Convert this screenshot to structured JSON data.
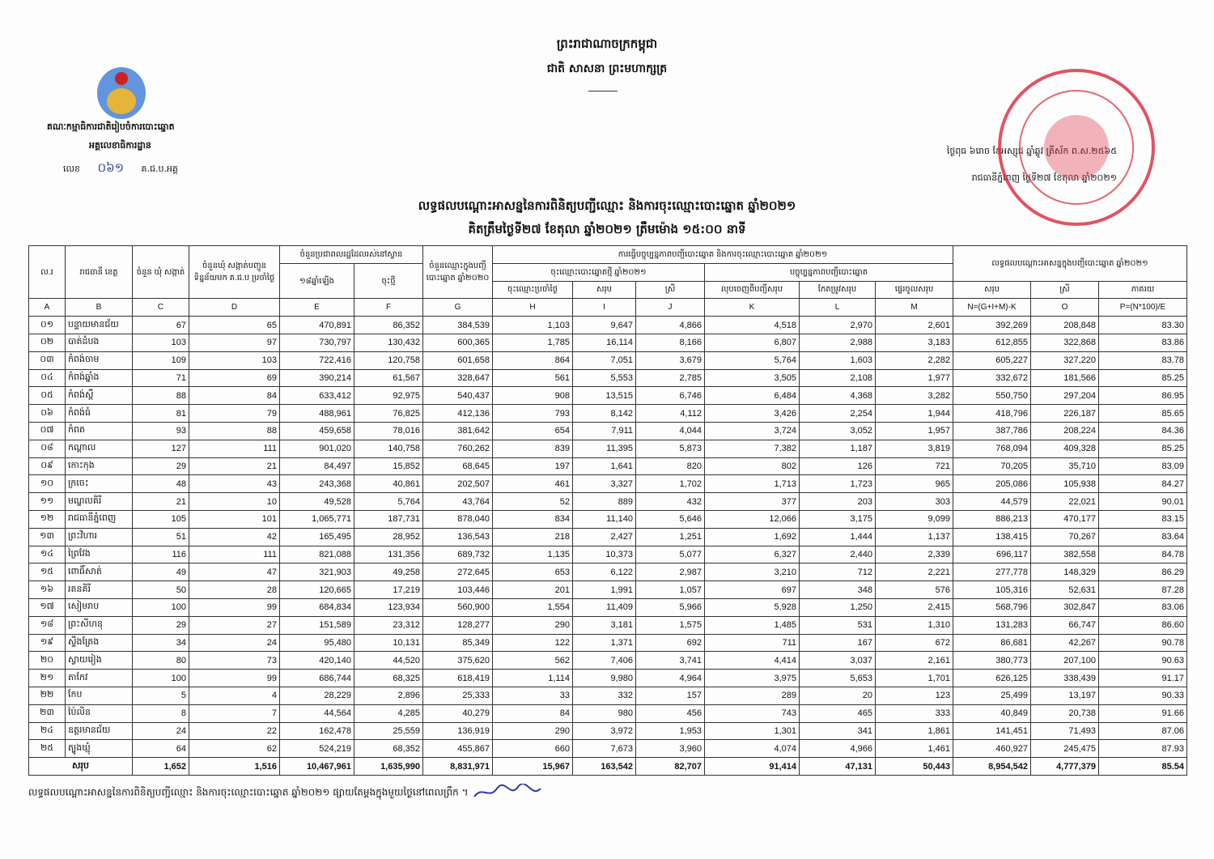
{
  "header": {
    "kingdom": "ព្រះរាជាណាចក្រកម្ពុជា",
    "motto": "ជាតិ សាសនា ព្រះមហាក្សត្រ"
  },
  "issuer": {
    "committee": "គណៈកម្មាធិការជាតិរៀបចំការបោះឆ្នោត",
    "office": "អគ្គលេខាធិការដ្ឋាន",
    "ref_label": "លេខ",
    "ref_number": "០៦១",
    "ref_suffix": "គ.ជ.ប.អគ្គ"
  },
  "date": {
    "lunar": "ថ្ងៃពុធ ៦រោច ខែអស្សុជ ឆ្នាំឆ្លូវ ត្រីស័ក ព.ស.២៥៦៥",
    "solar": "រាជធានីភ្នំពេញ ថ្ងៃទី២៧ ខែតុលា ឆ្នាំ២០២១"
  },
  "title": {
    "line1": "លទ្ធផលបណ្ដោះអាសន្ននៃការពិនិត្យបញ្ជីឈ្មោះ និងការចុះឈ្មោះបោះឆ្នោត ឆ្នាំ២០២១",
    "line2": "គិតត្រឹមថ្ងៃទី២៧ ខែតុលា ឆ្នាំ២០២១ ត្រឹមម៉ោង ១៥:០០ នាទី"
  },
  "colors": {
    "stamp": "#d9283a",
    "border": "#333333"
  },
  "table": {
    "headers": {
      "no": "ល.រ",
      "province": "រាជធានី ខេត្ត",
      "communes": "ចំនួន ឃុំ សង្កាត់",
      "reported": "ចំនួនឃុំ សង្កាត់បញ្ជូនទិន្នន័យមក គ.ជ.ប ប្រចាំថ្ងៃ",
      "population": "ចំនួនប្រជាពលរដ្ឋដែលរស់នៅស្ទាន",
      "pop_18": "១៨ឆ្នាំឡើង",
      "pop_new": "ចុះថ្មី",
      "voters2020": "ចំនួនឈ្មោះក្នុងបញ្ជីបោះឆ្នោត ឆ្នាំ២០២០",
      "update_group": "ការធ្វើបច្ចុប្បន្នភាពបញ្ជីបោះឆ្នោត និងការចុះឈ្មោះបោះឆ្នោត ឆ្នាំ២០២១",
      "new_reg": "ចុះឈ្មោះបោះឆ្នោតថ្មី ឆ្នាំ២០២១",
      "daily": "ចុះឈ្មោះប្រចាំថ្ងៃ",
      "total": "សរុប",
      "female": "ស្រី",
      "updating": "បច្ចុប្បន្នភាពបញ្ជីបោះឆ្នោត",
      "deleted": "លុបចេញពីបញ្ជីសរុប",
      "corrected": "កែតម្រូវសរុប",
      "moved": "ផ្ទេរចូលសរុប",
      "result_group": "លទ្ធផលបណ្ដោះអាសន្នក្នុងបញ្ជីបោះឆ្នោត ឆ្នាំ២០២១",
      "percent": "ភាគរយ"
    },
    "letters": [
      "A",
      "B",
      "C",
      "D",
      "E",
      "F",
      "G",
      "H",
      "I",
      "J",
      "K",
      "L",
      "M",
      "N=(G+I+M)-K",
      "O",
      "P=(N*100)/E"
    ],
    "rows": [
      [
        "០១",
        "បន្ទាយមានជ័យ",
        "67",
        "65",
        "470,891",
        "86,352",
        "384,539",
        "1,103",
        "9,647",
        "4,866",
        "4,518",
        "2,970",
        "2,601",
        "392,269",
        "208,848",
        "83.30"
      ],
      [
        "០២",
        "បាត់ដំបង",
        "103",
        "97",
        "730,797",
        "130,432",
        "600,365",
        "1,785",
        "16,114",
        "8,166",
        "6,807",
        "2,988",
        "3,183",
        "612,855",
        "322,868",
        "83.86"
      ],
      [
        "០៣",
        "កំពង់ចាម",
        "109",
        "103",
        "722,416",
        "120,758",
        "601,658",
        "864",
        "7,051",
        "3,679",
        "5,764",
        "1,603",
        "2,282",
        "605,227",
        "327,220",
        "83.78"
      ],
      [
        "០៤",
        "កំពង់ឆ្នាំង",
        "71",
        "69",
        "390,214",
        "61,567",
        "328,647",
        "561",
        "5,553",
        "2,785",
        "3,505",
        "2,108",
        "1,977",
        "332,672",
        "181,566",
        "85.25"
      ],
      [
        "០៥",
        "កំពង់ស្ពឺ",
        "88",
        "84",
        "633,412",
        "92,975",
        "540,437",
        "908",
        "13,515",
        "6,746",
        "6,484",
        "4,368",
        "3,282",
        "550,750",
        "297,204",
        "86.95"
      ],
      [
        "០៦",
        "កំពង់ធំ",
        "81",
        "79",
        "488,961",
        "76,825",
        "412,136",
        "793",
        "8,142",
        "4,112",
        "3,426",
        "2,254",
        "1,944",
        "418,796",
        "226,187",
        "85.65"
      ],
      [
        "០៧",
        "កំពត",
        "93",
        "88",
        "459,658",
        "78,016",
        "381,642",
        "654",
        "7,911",
        "4,044",
        "3,724",
        "3,052",
        "1,957",
        "387,786",
        "208,224",
        "84.36"
      ],
      [
        "០៨",
        "កណ្ដាល",
        "127",
        "111",
        "901,020",
        "140,758",
        "760,262",
        "839",
        "11,395",
        "5,873",
        "7,382",
        "1,187",
        "3,819",
        "768,094",
        "409,328",
        "85.25"
      ],
      [
        "០៩",
        "កោះកុង",
        "29",
        "21",
        "84,497",
        "15,852",
        "68,645",
        "197",
        "1,641",
        "820",
        "802",
        "126",
        "721",
        "70,205",
        "35,710",
        "83.09"
      ],
      [
        "១០",
        "ក្រចេះ",
        "48",
        "43",
        "243,368",
        "40,861",
        "202,507",
        "461",
        "3,327",
        "1,702",
        "1,713",
        "1,723",
        "965",
        "205,086",
        "105,938",
        "84.27"
      ],
      [
        "១១",
        "មណ្ឌលគិរី",
        "21",
        "10",
        "49,528",
        "5,764",
        "43,764",
        "52",
        "889",
        "432",
        "377",
        "203",
        "303",
        "44,579",
        "22,021",
        "90.01"
      ],
      [
        "១២",
        "រាជធានីភ្នំពេញ",
        "105",
        "101",
        "1,065,771",
        "187,731",
        "878,040",
        "834",
        "11,140",
        "5,646",
        "12,066",
        "3,175",
        "9,099",
        "886,213",
        "470,177",
        "83.15"
      ],
      [
        "១៣",
        "ព្រះវិហារ",
        "51",
        "42",
        "165,495",
        "28,952",
        "136,543",
        "218",
        "2,427",
        "1,251",
        "1,692",
        "1,444",
        "1,137",
        "138,415",
        "70,267",
        "83.64"
      ],
      [
        "១៤",
        "ព្រៃវែង",
        "116",
        "111",
        "821,088",
        "131,356",
        "689,732",
        "1,135",
        "10,373",
        "5,077",
        "6,327",
        "2,440",
        "2,339",
        "696,117",
        "382,558",
        "84.78"
      ],
      [
        "១៥",
        "ពោធិ៍សាត់",
        "49",
        "47",
        "321,903",
        "49,258",
        "272,645",
        "653",
        "6,122",
        "2,987",
        "3,210",
        "712",
        "2,221",
        "277,778",
        "148,329",
        "86.29"
      ],
      [
        "១៦",
        "រតនគិរី",
        "50",
        "28",
        "120,665",
        "17,219",
        "103,446",
        "201",
        "1,991",
        "1,057",
        "697",
        "348",
        "576",
        "105,316",
        "52,631",
        "87.28"
      ],
      [
        "១៧",
        "សៀមរាប",
        "100",
        "99",
        "684,834",
        "123,934",
        "560,900",
        "1,554",
        "11,409",
        "5,966",
        "5,928",
        "1,250",
        "2,415",
        "568,796",
        "302,847",
        "83.06"
      ],
      [
        "១៨",
        "ព្រះសីហនុ",
        "29",
        "27",
        "151,589",
        "23,312",
        "128,277",
        "290",
        "3,181",
        "1,575",
        "1,485",
        "531",
        "1,310",
        "131,283",
        "66,747",
        "86.60"
      ],
      [
        "១៩",
        "ស្ទឹងត្រែង",
        "34",
        "24",
        "95,480",
        "10,131",
        "85,349",
        "122",
        "1,371",
        "692",
        "711",
        "167",
        "672",
        "86,681",
        "42,267",
        "90.78"
      ],
      [
        "២០",
        "ស្វាយរៀង",
        "80",
        "73",
        "420,140",
        "44,520",
        "375,620",
        "562",
        "7,406",
        "3,741",
        "4,414",
        "3,037",
        "2,161",
        "380,773",
        "207,100",
        "90.63"
      ],
      [
        "២១",
        "តាកែវ",
        "100",
        "99",
        "686,744",
        "68,325",
        "618,419",
        "1,114",
        "9,980",
        "4,964",
        "3,975",
        "5,653",
        "1,701",
        "626,125",
        "338,439",
        "91.17"
      ],
      [
        "២២",
        "កែប",
        "5",
        "4",
        "28,229",
        "2,896",
        "25,333",
        "33",
        "332",
        "157",
        "289",
        "20",
        "123",
        "25,499",
        "13,197",
        "90.33"
      ],
      [
        "២៣",
        "ប៉ៃលិន",
        "8",
        "7",
        "44,564",
        "4,285",
        "40,279",
        "84",
        "980",
        "456",
        "743",
        "465",
        "333",
        "40,849",
        "20,738",
        "91.66"
      ],
      [
        "២៤",
        "ឧត្ដរមានជ័យ",
        "24",
        "22",
        "162,478",
        "25,559",
        "136,919",
        "290",
        "3,972",
        "1,953",
        "1,301",
        "341",
        "1,861",
        "141,451",
        "71,493",
        "87.06"
      ],
      [
        "២៥",
        "ត្បូងឃ្មុំ",
        "64",
        "62",
        "524,219",
        "68,352",
        "455,867",
        "660",
        "7,673",
        "3,960",
        "4,074",
        "4,966",
        "1,461",
        "460,927",
        "245,475",
        "87.93"
      ]
    ],
    "total": [
      "សរុប",
      "1,652",
      "1,516",
      "10,467,961",
      "1,635,990",
      "8,831,971",
      "15,967",
      "163,542",
      "82,707",
      "91,414",
      "47,131",
      "50,443",
      "8,954,542",
      "4,777,379",
      "85.54"
    ]
  },
  "footer": "លទ្ធផលបណ្ដោះអាសន្ននៃការពិនិត្យបញ្ជីឈ្មោះ និងការចុះឈ្មោះបោះឆ្នោត ឆ្នាំ២០២១ ផ្សាយតែម្ដងក្នុងមួយថ្ងៃនៅពេលព្រឹក ។"
}
